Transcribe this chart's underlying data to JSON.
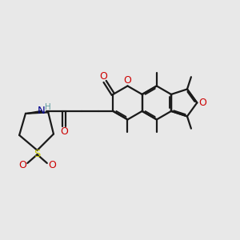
{
  "bg": "#e8e8e8",
  "bc": "#1a1a1a",
  "oc": "#cc0000",
  "nc": "#00008b",
  "sc": "#cccc00",
  "hc": "#5f9ea0",
  "lw": 1.6,
  "figsize": [
    3.0,
    3.0
  ],
  "dpi": 100,
  "xlim": [
    0,
    10
  ],
  "ylim": [
    0,
    10
  ]
}
